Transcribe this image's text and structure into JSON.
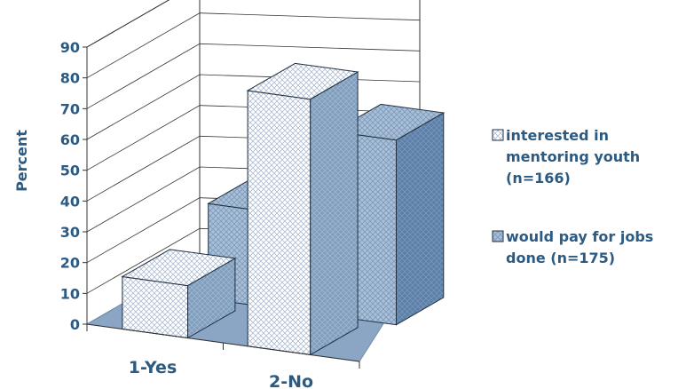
{
  "chart_data": {
    "type": "bar",
    "title": "",
    "xlabel": "",
    "ylabel": "Percent",
    "ylim": [
      0,
      90
    ],
    "yticks": [
      0,
      10,
      20,
      30,
      40,
      50,
      60,
      70,
      80,
      90
    ],
    "categories": [
      "1-Yes",
      "2-No"
    ],
    "series": [
      {
        "name": "interested in mentoring youth (n=166)",
        "legend_lines": [
          "interested in",
          "mentoring youth",
          "(n=166)"
        ],
        "values": [
          17,
          83
        ]
      },
      {
        "name": "would pay for jobs done (n=175)",
        "legend_lines": [
          "would pay for jobs",
          "done (n=175)"
        ],
        "values": [
          31,
          60
        ]
      }
    ],
    "grid": true,
    "legend_position": "right",
    "colors": {
      "floor": "#8aa6c4",
      "wall_line": "#333333",
      "series1_face": "#fdfdfd",
      "series1_side": "#7f9dbd",
      "series2_face": "#a9bfd8",
      "series2_side": "#5b7fa8",
      "text": "#2b5a82"
    }
  }
}
